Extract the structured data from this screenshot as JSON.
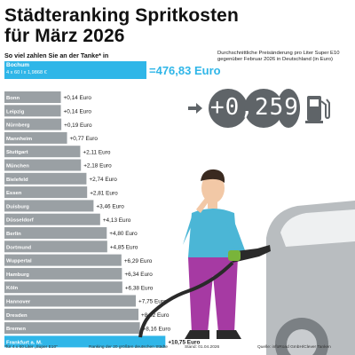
{
  "header": {
    "title_line1": "Städteranking Spritkosten",
    "title_line2": "für März 2026",
    "subtitle": "So viel zahlen Sie an der Tanke* in"
  },
  "hero": {
    "city": "Bochum",
    "calc": "4 x 60 l x 1,9868 €",
    "total": "=476,83 Euro"
  },
  "side_note": {
    "text": "Durchschnittliche Preisänderung pro Liter Super E10 gegenüber Februar 2026 in Deutschland (in Euro)",
    "value": "+0,2591"
  },
  "footer": {
    "footnote": "*für 4 x 60 Liter „Super E10\"",
    "ranking_note": "Ranking der 20 größten deutschen Städte",
    "date": "Stand: 01.04.2026",
    "source": "Quelle: infoRoad GmbH/Clever Tanken"
  },
  "colors": {
    "accent": "#2fb6e8",
    "bar": "#9aa0a4",
    "circle": "#5f6468"
  },
  "chart_data": {
    "type": "bar",
    "orientation": "horizontal",
    "categories": [
      "Bonn",
      "Leipzig",
      "Nürnberg",
      "Mannheim",
      "Stuttgart",
      "München",
      "Bielefeld",
      "Essen",
      "Duisburg",
      "Düsseldorf",
      "Berlin",
      "Dortmund",
      "Wuppertal",
      "Hamburg",
      "Köln",
      "Hannover",
      "Dresden",
      "Bremen",
      "Frankfurt a. M."
    ],
    "values": [
      0.14,
      0.14,
      0.19,
      0.77,
      2.11,
      2.18,
      2.74,
      2.81,
      3.46,
      4.13,
      4.8,
      4.85,
      6.29,
      6.34,
      6.38,
      7.75,
      8.02,
      8.16,
      10.75
    ],
    "labels": [
      "+0,14 Euro",
      "+0,14 Euro",
      "+0,19 Euro",
      "+0,77 Euro",
      "+2,11 Euro",
      "+2,18 Euro",
      "+2,74 Euro",
      "+2,81 Euro",
      "+3,46 Euro",
      "+4,13 Euro",
      "+4,80 Euro",
      "+4,85 Euro",
      "+6,29 Euro",
      "+6,34 Euro",
      "+6,38 Euro",
      "+7,75 Euro",
      "+8,02 Euro",
      "+8,16 Euro",
      "+10,75 Euro"
    ],
    "unit": "Euro",
    "xlim": [
      0,
      10.75
    ]
  }
}
